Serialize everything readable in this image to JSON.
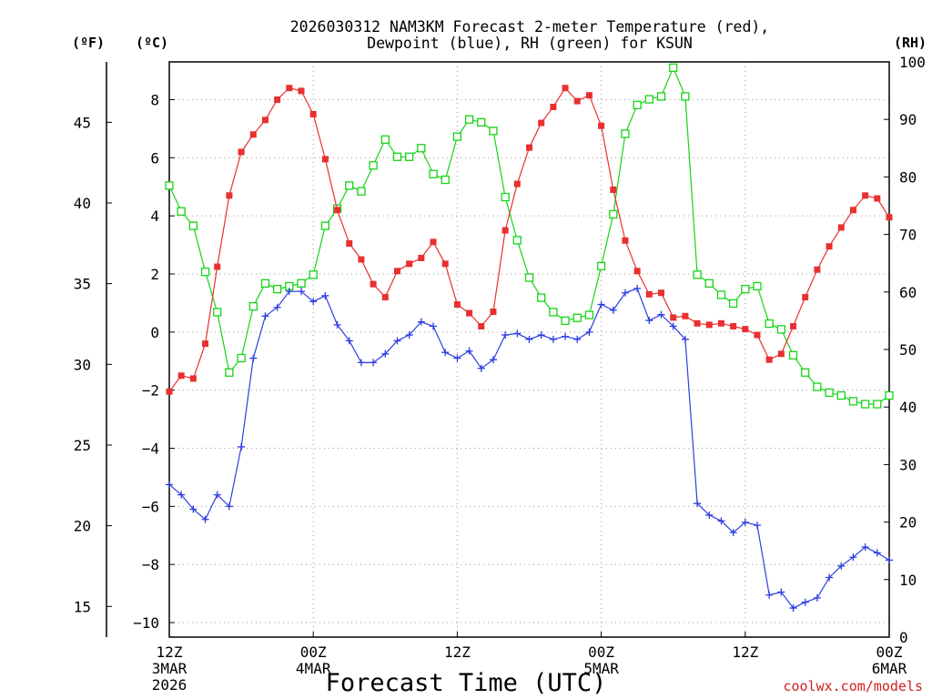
{
  "chart_data": {
    "type": "line",
    "title_line1": "2026030312 NAM3KM Forecast 2-meter Temperature (red),",
    "title_line2": "Dewpoint (blue), RH (green) for KSUN",
    "xlabel": "Forecast Time (UTC)",
    "unit_f": "(ºF)",
    "unit_c": "(ºC)",
    "unit_rh": "(RH)",
    "credit": "coolwx.com/models",
    "x_ticks": [
      {
        "h": 0,
        "l1": "12Z",
        "l2": "3MAR",
        "l3": "2026"
      },
      {
        "h": 12,
        "l1": "00Z",
        "l2": "4MAR",
        "l3": ""
      },
      {
        "h": 24,
        "l1": "12Z",
        "l2": "",
        "l3": ""
      },
      {
        "h": 36,
        "l1": "00Z",
        "l2": "5MAR",
        "l3": ""
      },
      {
        "h": 48,
        "l1": "12Z",
        "l2": "",
        "l3": ""
      },
      {
        "h": 60,
        "l1": "00Z",
        "l2": "6MAR",
        "l3": ""
      }
    ],
    "x_range_hours": [
      0,
      60
    ],
    "celsius_axis": {
      "range": [
        -10.5,
        9.3
      ],
      "ticks": [
        "−10",
        "−8",
        "−6",
        "−4",
        "−2",
        "0",
        "2",
        "4",
        "6",
        "8"
      ],
      "tick_values": [
        -10,
        -8,
        -6,
        -4,
        -2,
        0,
        2,
        4,
        6,
        8
      ]
    },
    "fahrenheit_axis": {
      "ticks": [
        "15",
        "20",
        "25",
        "30",
        "35",
        "40",
        "45"
      ],
      "tick_values": [
        15,
        20,
        25,
        30,
        35,
        40,
        45
      ]
    },
    "rh_axis": {
      "range": [
        0,
        100
      ],
      "ticks": [
        "0",
        "10",
        "20",
        "30",
        "40",
        "50",
        "60",
        "70",
        "80",
        "90",
        "100"
      ],
      "tick_values": [
        0,
        10,
        20,
        30,
        40,
        50,
        60,
        70,
        80,
        90,
        100
      ]
    },
    "series": [
      {
        "name": "Temperature",
        "unit": "C",
        "color": "#e83030",
        "marker": "filled-square",
        "values": [
          -2.05,
          -1.5,
          -1.6,
          -0.4,
          2.25,
          4.7,
          6.2,
          6.8,
          7.3,
          8.0,
          8.4,
          8.3,
          7.5,
          5.95,
          4.2,
          3.05,
          2.5,
          1.65,
          1.2,
          2.1,
          2.35,
          2.55,
          3.1,
          2.35,
          0.95,
          0.65,
          0.2,
          0.7,
          3.5,
          5.1,
          6.35,
          7.2,
          7.75,
          8.4,
          7.95,
          8.15,
          7.1,
          4.9,
          3.15,
          2.1,
          1.3,
          1.35,
          0.5,
          0.55,
          0.3,
          0.25,
          0.3,
          0.2,
          0.1,
          -0.1,
          -0.95,
          -0.75,
          0.2,
          1.2,
          2.15,
          2.95,
          3.6,
          4.2,
          4.7,
          4.6,
          3.95
        ]
      },
      {
        "name": "Dewpoint",
        "unit": "C",
        "color": "#2d3de0",
        "marker": "plus",
        "values": [
          -5.25,
          -5.6,
          -6.1,
          -6.45,
          -5.6,
          -6.0,
          -3.95,
          -0.9,
          0.55,
          0.85,
          1.4,
          1.4,
          1.05,
          1.25,
          0.25,
          -0.3,
          -1.05,
          -1.05,
          -0.75,
          -0.3,
          -0.1,
          0.35,
          0.2,
          -0.7,
          -0.9,
          -0.65,
          -1.25,
          -0.95,
          -0.1,
          -0.05,
          -0.25,
          -0.1,
          -0.25,
          -0.15,
          -0.25,
          0.0,
          0.95,
          0.75,
          1.35,
          1.5,
          0.4,
          0.6,
          0.2,
          -0.25,
          -5.9,
          -6.3,
          -6.5,
          -6.9,
          -6.55,
          -6.65,
          -9.05,
          -8.95,
          -9.5,
          -9.3,
          -9.15,
          -8.45,
          -8.05,
          -7.75,
          -7.4,
          -7.6,
          -7.85
        ]
      },
      {
        "name": "RH",
        "unit": "%",
        "color": "#16d416",
        "marker": "open-square",
        "values": [
          78.5,
          74,
          71.5,
          63.5,
          56.5,
          46,
          48.5,
          57.5,
          61.5,
          60.5,
          61,
          61.5,
          63,
          71.5,
          74.5,
          78.5,
          77.5,
          82,
          86.5,
          83.5,
          83.5,
          85,
          80.5,
          79.5,
          87,
          90,
          89.5,
          88,
          76.5,
          69,
          62.5,
          59,
          56.5,
          55,
          55.5,
          56,
          64.5,
          73.5,
          87.5,
          92.5,
          93.5,
          94,
          99,
          94,
          63,
          61.5,
          59.5,
          58,
          60.5,
          61,
          54.5,
          53.5,
          49,
          46,
          43.5,
          42.5,
          42,
          41,
          40.5,
          40.5,
          42
        ]
      }
    ]
  }
}
